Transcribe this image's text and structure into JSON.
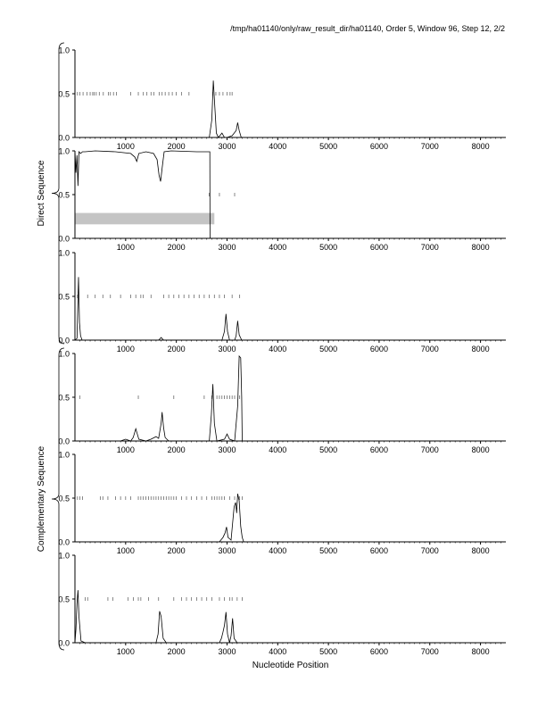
{
  "header": {
    "path_text": "/tmp/ha01140/only/raw_result_dir/ha01140, Order 5, Window 96, Step 12, 2/2"
  },
  "figure": {
    "group_labels": {
      "direct": "Direct Sequence",
      "complementary": "Complementary Sequence"
    },
    "xlabel": "Nucleotide Position",
    "xlim": [
      0,
      8500
    ],
    "ylim": [
      0,
      1.0
    ],
    "xticks": [
      1000,
      2000,
      3000,
      4000,
      5000,
      6000,
      7000,
      8000
    ],
    "yticks": [
      0.0,
      0.5,
      1.0
    ],
    "ytick_labels": [
      "0.0",
      "0.5",
      "1.0"
    ]
  },
  "chart_data": [
    {
      "type": "line",
      "panel": 1,
      "group": "direct",
      "x": [
        0,
        2650,
        2700,
        2730,
        2760,
        2790,
        2830,
        2900,
        2950,
        3000,
        3100,
        3180,
        3210,
        3240,
        3280,
        3400,
        8500
      ],
      "y": [
        0.0,
        0.0,
        0.2,
        0.65,
        0.35,
        0.05,
        0.0,
        0.05,
        0.0,
        0.0,
        0.02,
        0.08,
        0.17,
        0.08,
        0.0,
        0.0,
        0.0
      ],
      "tick_marks_at_0_5": [
        50,
        100,
        160,
        240,
        300,
        350,
        380,
        420,
        480,
        560,
        660,
        700,
        760,
        820,
        1100,
        1250,
        1350,
        1420,
        1500,
        1560,
        1660,
        1720,
        1780,
        1850,
        1920,
        2000,
        2100,
        2250,
        2720,
        2780,
        2850,
        2920,
        3000,
        3060,
        3100
      ]
    },
    {
      "type": "line",
      "panel": 2,
      "group": "direct",
      "x": [
        0,
        20,
        40,
        60,
        80,
        110,
        150,
        200,
        400,
        800,
        1100,
        1180,
        1220,
        1260,
        1400,
        1550,
        1620,
        1660,
        1690,
        1720,
        1760,
        1900,
        2400,
        2660,
        2665,
        8500
      ],
      "y": [
        1.0,
        0.75,
        0.95,
        0.6,
        0.99,
        0.97,
        0.99,
        0.99,
        1.0,
        0.99,
        0.97,
        0.93,
        0.88,
        0.97,
        0.99,
        0.97,
        0.9,
        0.72,
        0.65,
        0.8,
        0.99,
        1.0,
        0.99,
        0.99,
        0.0,
        0.0
      ],
      "tick_marks_at_0_5": [
        2650,
        2850,
        3150
      ],
      "shaded_band": {
        "x": [
          0,
          2750
        ],
        "y": [
          0.16,
          0.29
        ]
      }
    },
    {
      "type": "line",
      "panel": 3,
      "group": "direct",
      "x": [
        0,
        40,
        70,
        90,
        110,
        140,
        300,
        1650,
        1700,
        1750,
        2900,
        2950,
        2980,
        3010,
        3050,
        3150,
        3180,
        3210,
        3240,
        3290,
        8500
      ],
      "y": [
        0.0,
        0.02,
        0.72,
        0.2,
        0.05,
        0.0,
        0.0,
        0.0,
        0.03,
        0.0,
        0.0,
        0.1,
        0.3,
        0.1,
        0.0,
        0.0,
        0.05,
        0.22,
        0.06,
        0.0,
        0.0
      ],
      "tick_marks_at_0_5": [
        50,
        250,
        400,
        550,
        700,
        900,
        1100,
        1200,
        1300,
        1350,
        1500,
        1750,
        1850,
        1950,
        2050,
        2150,
        2250,
        2350,
        2450,
        2550,
        2650,
        2750,
        2850,
        2950,
        3100,
        3250
      ]
    },
    {
      "type": "line",
      "panel": 4,
      "group": "complementary",
      "x": [
        0,
        900,
        1000,
        1100,
        1150,
        1200,
        1230,
        1260,
        1400,
        1500,
        1600,
        1650,
        1700,
        1720,
        1750,
        1780,
        1850,
        2650,
        2690,
        2720,
        2750,
        2800,
        2950,
        3000,
        3050,
        3150,
        3210,
        3240,
        3270,
        3290,
        3300,
        8500
      ],
      "y": [
        0.0,
        0.0,
        0.02,
        0.0,
        0.04,
        0.14,
        0.08,
        0.02,
        0.0,
        0.02,
        0.05,
        0.03,
        0.2,
        0.33,
        0.15,
        0.04,
        0.0,
        0.0,
        0.3,
        0.65,
        0.2,
        0.0,
        0.02,
        0.08,
        0.02,
        0.0,
        0.4,
        0.97,
        0.95,
        0.5,
        0.0,
        0.0
      ],
      "tick_marks_at_0_5": [
        100,
        1250,
        1950,
        2550,
        2700,
        2800,
        2850,
        2900,
        2950,
        3000,
        3050,
        3100,
        3150,
        3250
      ]
    },
    {
      "type": "line",
      "panel": 5,
      "group": "complementary",
      "x": [
        0,
        2850,
        2920,
        2960,
        2990,
        3020,
        3080,
        3140,
        3170,
        3190,
        3210,
        3240,
        3270,
        3300,
        3330,
        8500
      ],
      "y": [
        0.0,
        0.0,
        0.05,
        0.1,
        0.17,
        0.05,
        0.02,
        0.4,
        0.45,
        0.33,
        0.55,
        0.47,
        0.18,
        0.05,
        0.0,
        0.0
      ],
      "tick_marks_at_0_5": [
        50,
        100,
        150,
        500,
        550,
        650,
        800,
        900,
        1000,
        1100,
        1250,
        1300,
        1350,
        1400,
        1450,
        1500,
        1550,
        1600,
        1650,
        1700,
        1750,
        1800,
        1850,
        1900,
        1950,
        2000,
        2100,
        2200,
        2300,
        2400,
        2500,
        2600,
        2700,
        2750,
        2800,
        2850,
        2900,
        2950,
        3050,
        3150,
        3250,
        3300
      ]
    },
    {
      "type": "line",
      "panel": 6,
      "group": "complementary",
      "x": [
        0,
        20,
        40,
        60,
        80,
        120,
        200,
        1600,
        1640,
        1670,
        1700,
        1740,
        1800,
        2850,
        2890,
        2920,
        2950,
        2980,
        3010,
        3050,
        3080,
        3110,
        3140,
        3200,
        8500
      ],
      "y": [
        0.0,
        0.15,
        0.45,
        0.6,
        0.3,
        0.02,
        0.0,
        0.0,
        0.1,
        0.36,
        0.3,
        0.05,
        0.0,
        0.0,
        0.05,
        0.12,
        0.2,
        0.35,
        0.1,
        0.0,
        0.08,
        0.28,
        0.05,
        0.0,
        0.0
      ],
      "tick_marks_at_0_5": [
        200,
        250,
        650,
        750,
        1050,
        1150,
        1250,
        1300,
        1450,
        1650,
        1950,
        2100,
        2200,
        2300,
        2400,
        2500,
        2600,
        2700,
        2850,
        2950,
        3050,
        3100,
        3200,
        3300
      ]
    }
  ]
}
